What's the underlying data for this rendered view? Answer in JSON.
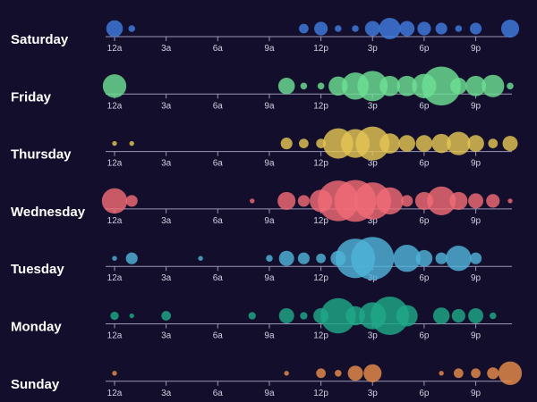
{
  "chart_data": {
    "type": "scatter",
    "title": "",
    "xlabel": "",
    "ylabel": "",
    "x_ticks": [
      "12a",
      "3a",
      "6a",
      "9a",
      "12p",
      "3p",
      "6p",
      "9p"
    ],
    "x_tick_hours": [
      0,
      3,
      6,
      9,
      12,
      15,
      18,
      21
    ],
    "xlim": [
      0,
      23
    ],
    "size_encoding": "bubble area",
    "series": [
      {
        "name": "Saturday",
        "color": "#3f7be0",
        "values": [
          6,
          1,
          0,
          0,
          0,
          0,
          0,
          0,
          0,
          0,
          0,
          2,
          4,
          1,
          1,
          5,
          10,
          5,
          4,
          3,
          1,
          3,
          0,
          7
        ]
      },
      {
        "name": "Friday",
        "color": "#6ddf94",
        "values": [
          12,
          0,
          0,
          0,
          0,
          0,
          0,
          0,
          0,
          0,
          6,
          1,
          1,
          8,
          16,
          20,
          9,
          9,
          13,
          33,
          6,
          9,
          11,
          1
        ]
      },
      {
        "name": "Thursday",
        "color": "#e3c454",
        "values": [
          0.5,
          0.5,
          0,
          0,
          0,
          0,
          0,
          0,
          0,
          0,
          3,
          2,
          2,
          20,
          18,
          25,
          9,
          6,
          6,
          8,
          12,
          6,
          2,
          5
        ]
      },
      {
        "name": "Wednesday",
        "color": "#f06b76",
        "values": [
          14,
          3,
          0,
          0,
          0,
          0,
          0,
          0,
          0.5,
          0,
          7,
          3,
          11,
          36,
          38,
          30,
          16,
          3,
          7,
          18,
          7,
          5,
          4,
          0.5
        ]
      },
      {
        "name": "Tuesday",
        "color": "#4fb3d9",
        "values": [
          0.5,
          3,
          0,
          0,
          0,
          0.5,
          0,
          0,
          0,
          1,
          5,
          3,
          2,
          5,
          34,
          40,
          0,
          16,
          6,
          3,
          14,
          3,
          0,
          0
        ]
      },
      {
        "name": "Monday",
        "color": "#1fa889",
        "values": [
          1.5,
          0.5,
          0,
          2,
          0,
          0,
          0,
          0,
          1.2,
          0,
          5,
          1.2,
          5,
          27,
          8,
          16,
          32,
          10,
          0,
          6,
          4,
          5,
          1,
          0
        ]
      },
      {
        "name": "Sunday",
        "color": "#e88c4c",
        "values": [
          0.5,
          0,
          0,
          0,
          0,
          0,
          0,
          0,
          0,
          0,
          0.5,
          0,
          2,
          1,
          5,
          7,
          0,
          0,
          0,
          0.5,
          2,
          2,
          3,
          12
        ]
      }
    ]
  }
}
